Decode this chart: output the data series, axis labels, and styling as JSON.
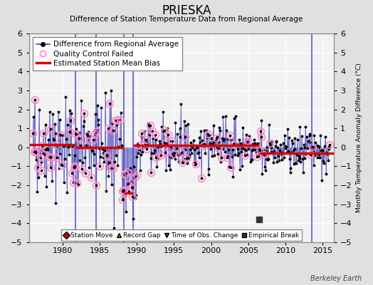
{
  "title": "PRIESKA",
  "subtitle": "Difference of Station Temperature Data from Regional Average",
  "ylabel_right": "Monthly Temperature Anomaly Difference (°C)",
  "xlim": [
    1975.5,
    2016.5
  ],
  "ylim": [
    -5,
    6
  ],
  "yticks": [
    -5,
    -4,
    -3,
    -2,
    -1,
    0,
    1,
    2,
    3,
    4,
    5,
    6
  ],
  "xticks": [
    1980,
    1985,
    1990,
    1995,
    2000,
    2005,
    2010,
    2015
  ],
  "background_color": "#e0e0e0",
  "plot_bg_color": "#f2f2f2",
  "grid_color": "#ffffff",
  "line_color": "#4444bb",
  "bias_color": "#dd0000",
  "qc_color": "#ff88cc",
  "station_move_color": "#cc0000",
  "record_gap_color": "#00aa00",
  "time_obs_color": "#4444bb",
  "empirical_break_color": "#333333",
  "vertical_lines_x": [
    1981.75,
    1984.5,
    1988.25,
    1989.5,
    2013.5
  ],
  "empirical_break_x": 2006.5,
  "empirical_break_y": -3.8,
  "bias_segments": [
    {
      "x": [
        1975.5,
        1981.75
      ],
      "y": [
        0.15,
        0.15
      ]
    },
    {
      "x": [
        1981.75,
        1988.25
      ],
      "y": [
        0.0,
        0.0
      ]
    },
    {
      "x": [
        1988.25,
        1989.5
      ],
      "y": [
        -2.4,
        -2.4
      ]
    },
    {
      "x": [
        1989.5,
        2006.5
      ],
      "y": [
        0.1,
        0.1
      ]
    },
    {
      "x": [
        2006.5,
        2016.5
      ],
      "y": [
        -0.3,
        -0.3
      ]
    }
  ],
  "berkeley_earth_text": "Berkeley Earth",
  "legend_fontsize": 7.5,
  "tick_fontsize": 8,
  "seed": 42
}
